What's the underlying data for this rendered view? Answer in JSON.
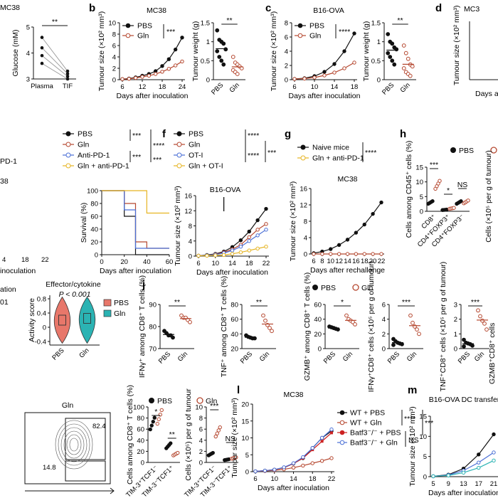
{
  "figure": {
    "fragments": {
      "title_top_left": "MC38",
      "title_top_right": "MC3",
      "left_e_1": "PD-1",
      "left_e_2": "38",
      "left_e_3": "inoculation",
      "left_e_ticks": [
        "4",
        "18",
        "22"
      ],
      "left_i_1": "ation",
      "left_i_2": "01",
      "right_j_partial": "GZMB⁺CD8⁺ cells",
      "right_d_1": "Tumour size (×10² mm³)",
      "right_d_2": "Days a"
    },
    "colors": {
      "pbs": "#111111",
      "gln": "#b5472f",
      "blue": "#4a6fd6",
      "yellow": "#e6b422",
      "purple": "#7d4bb0",
      "red": "#cc2222",
      "teal": "#2bb3b3",
      "salmon": "#e8776a"
    }
  },
  "panels": [
    {
      "id": "a",
      "chart_data": {
        "type": "scatter",
        "ylabel": "Glucose (mM)",
        "categories": [
          "Plasma",
          "TIF"
        ],
        "series": [
          {
            "name": "",
            "values": [
              [
                4.6,
                3.3
              ],
              [
                4.2,
                3.2
              ],
              [
                3.9,
                3.1
              ],
              [
                3.6,
                3.0
              ]
            ]
          }
        ],
        "ylim": [
          3,
          5
        ],
        "significance": "**"
      }
    },
    {
      "id": "b",
      "title": "MC38",
      "chart_data": {
        "type": "line",
        "xlabel": "Days after inoculation",
        "ylabel": "Tumour size (×10² mm³)",
        "x": [
          6,
          8,
          10,
          12,
          14,
          16,
          18,
          20,
          22,
          24
        ],
        "xticks": [
          6,
          12,
          18,
          24
        ],
        "yticks": [
          0,
          2,
          4,
          6,
          8,
          10
        ],
        "ylim": [
          0,
          10
        ],
        "series": [
          {
            "name": "PBS",
            "values": [
              0.1,
              0.2,
              0.4,
              0.7,
              1.0,
              1.5,
              2.4,
              3.6,
              5.3,
              7.4
            ]
          },
          {
            "name": "Gln",
            "values": [
              0.1,
              0.15,
              0.3,
              0.5,
              0.7,
              1.0,
              1.4,
              1.9,
              2.5,
              3.2
            ]
          }
        ],
        "significance": "***"
      }
    },
    {
      "id": "b2",
      "chart_data": {
        "type": "scatter",
        "ylabel": "Tumour weight (g)",
        "categories": [
          "PBS",
          "Gln"
        ],
        "yticks": [
          0.0,
          0.5,
          1.0,
          1.5
        ],
        "ylim": [
          0,
          1.5
        ],
        "series": [
          {
            "name": "PBS",
            "values": [
              1.3,
              1.05,
              1.0,
              0.95,
              0.8,
              0.75,
              0.6,
              0.5,
              0.4
            ]
          },
          {
            "name": "Gln",
            "values": [
              0.6,
              0.45,
              0.4,
              0.35,
              0.3,
              0.25,
              0.2,
              0.15
            ]
          }
        ],
        "significance": "**"
      }
    },
    {
      "id": "c",
      "title": "B16-OVA",
      "chart_data": {
        "type": "line",
        "xlabel": "Days after inoculation",
        "ylabel": "Tumour size (×10² mm³)",
        "x": [
          6,
          8,
          10,
          12,
          14,
          16,
          18
        ],
        "xticks": [
          6,
          10,
          14,
          18
        ],
        "yticks": [
          0,
          2,
          4,
          6,
          8
        ],
        "ylim": [
          0,
          8
        ],
        "series": [
          {
            "name": "PBS",
            "values": [
              0.1,
              0.2,
              0.5,
              1.1,
              2.2,
              4.0,
              6.5
            ]
          },
          {
            "name": "Gln",
            "values": [
              0.1,
              0.15,
              0.3,
              0.6,
              1.0,
              1.6,
              2.4
            ]
          }
        ],
        "significance": "****"
      }
    },
    {
      "id": "c2",
      "chart_data": {
        "type": "scatter",
        "ylabel": "Tumour weight (g)",
        "categories": [
          "PBS",
          "Gln"
        ],
        "yticks": [
          0,
          0.5,
          1.0,
          1.5
        ],
        "ylim": [
          0,
          1.5
        ],
        "series": [
          {
            "name": "PBS",
            "values": [
              1.2,
              1.0,
              0.95,
              0.85,
              0.8,
              0.7,
              0.6,
              0.5,
              0.4
            ]
          },
          {
            "name": "Gln",
            "values": [
              0.9,
              0.7,
              0.55,
              0.4,
              0.35,
              0.3,
              0.2,
              0.15,
              0.1
            ]
          }
        ],
        "significance": "**"
      }
    },
    {
      "id": "e2",
      "chart_data": {
        "type": "line",
        "xlabel": "Days after inoculation",
        "ylabel": "Survival (%)",
        "x": [
          0,
          10,
          20,
          30,
          40,
          50,
          60
        ],
        "xticks": [
          0,
          20,
          40,
          60
        ],
        "yticks": [
          0,
          20,
          40,
          60,
          80,
          100
        ],
        "ylim": [
          0,
          100
        ],
        "series": [
          {
            "name": "PBS",
            "values": [
              100,
              100,
              60,
              0,
              0,
              0,
              0
            ]
          },
          {
            "name": "Gln",
            "values": [
              100,
              100,
              80,
              20,
              10,
              10,
              10
            ]
          },
          {
            "name": "Anti-PD-1",
            "values": [
              100,
              100,
              70,
              10,
              10,
              10,
              10
            ]
          },
          {
            "name": "Gln + anti-PD-1",
            "values": [
              100,
              100,
              100,
              100,
              65,
              65,
              65
            ]
          }
        ],
        "significance": [
          "***",
          "****",
          "***",
          "***"
        ]
      }
    },
    {
      "id": "f",
      "title": "B16-OVA",
      "chart_data": {
        "type": "line",
        "xlabel": "Days after inoculation",
        "ylabel": "Tumour size (×10² mm³)",
        "x": [
          6,
          8,
          10,
          12,
          14,
          16,
          18,
          20,
          22
        ],
        "xticks": [
          6,
          10,
          14,
          18,
          22
        ],
        "yticks": [
          0,
          4,
          8,
          12,
          16
        ],
        "ylim": [
          0,
          16
        ],
        "series": [
          {
            "name": "PBS",
            "values": [
              0.1,
              0.3,
              0.6,
              1.2,
              2.4,
              4.2,
              6.5,
              9.5,
              12.5
            ]
          },
          {
            "name": "Gln",
            "values": [
              0.1,
              0.2,
              0.5,
              1.0,
              1.8,
              3.0,
              5.0,
              7.0,
              8.5
            ]
          },
          {
            "name": "OT-I",
            "values": [
              0.1,
              0.2,
              0.4,
              0.8,
              1.5,
              2.5,
              4.0,
              5.5,
              7.0
            ]
          },
          {
            "name": "Gln + OT-I",
            "values": [
              0.1,
              0.1,
              0.2,
              0.3,
              0.6,
              1.0,
              1.5,
              2.0,
              2.5
            ]
          }
        ],
        "significance": [
          "****",
          "****",
          "***"
        ]
      }
    },
    {
      "id": "g",
      "title": "MC38",
      "chart_data": {
        "type": "line",
        "xlabel": "Days after rechallenge",
        "ylabel": "Tumour size (×10² mm³)",
        "x": [
          6,
          8,
          10,
          12,
          14,
          16,
          18,
          20,
          22
        ],
        "xticks": [
          6,
          8,
          10,
          12,
          14,
          16,
          18,
          20,
          22
        ],
        "yticks": [
          0,
          4,
          8,
          12,
          16
        ],
        "ylim": [
          0,
          16
        ],
        "series": [
          {
            "name": "Naive mice",
            "values": [
              0.2,
              0.6,
              1.2,
              2.2,
              3.5,
              5.2,
              7.2,
              9.8,
              12.6
            ]
          },
          {
            "name": "Gln + anti-PD-1",
            "values": [
              0,
              0,
              0,
              0,
              0,
              0,
              0,
              0,
              0
            ]
          }
        ],
        "significance": "****"
      }
    },
    {
      "id": "h",
      "chart_data": {
        "type": "scatter",
        "ylabel": "Cells among CD45⁺ cells (%)",
        "categories": [
          "CD8⁺",
          "CD4⁺FOXP3⁺",
          "CD4⁺FOXP3⁻"
        ],
        "yticks": [
          0,
          5,
          10,
          15
        ],
        "ylim": [
          0,
          15
        ],
        "series": [
          {
            "name": "PBS",
            "values": [
              3.0,
              0.5,
              3.0
            ]
          },
          {
            "name": "Gln",
            "values": [
              9.0,
              1.0,
              3.2
            ]
          }
        ],
        "significance": [
          "***",
          "*",
          "NS"
        ],
        "ylabel2": "Cells (×10⁵ per g of tumour)"
      }
    },
    {
      "id": "i2",
      "title": "Effector/cytokine",
      "chart_data": {
        "type": "violin",
        "ylabel": "Activity score",
        "categories": [
          "PBS",
          "Gln"
        ],
        "yticks": [
          -0.4,
          0,
          0.4,
          0.8
        ],
        "ylim": [
          -0.5,
          0.9
        ],
        "series": [
          {
            "name": "PBS",
            "values": [
              0.2
            ]
          },
          {
            "name": "Gln",
            "values": [
              0.25
            ]
          }
        ],
        "significance": "P < 0.001"
      }
    },
    {
      "id": "j1",
      "chart_data": {
        "type": "scatter",
        "ylabel": "IFNγ⁺ among CD8⁺ T cells (%)",
        "categories": [
          "PBS",
          "Gln"
        ],
        "yticks": [
          70,
          80,
          90
        ],
        "ylim": [
          70,
          90
        ],
        "series": [
          {
            "name": "PBS",
            "values": [
              78,
              77,
              76,
              76,
              75
            ]
          },
          {
            "name": "Gln",
            "values": [
              85,
              84,
              84,
              83,
              82
            ]
          }
        ],
        "significance": "**"
      }
    },
    {
      "id": "j2",
      "chart_data": {
        "type": "scatter",
        "ylabel": "TNF⁺ among CD8⁺ T cells (%)",
        "categories": [
          "PBS",
          "Gln"
        ],
        "yticks": [
          20,
          40,
          60,
          80
        ],
        "ylim": [
          20,
          80
        ],
        "series": [
          {
            "name": "PBS",
            "values": [
              38,
              36,
              35,
              34,
              34
            ]
          },
          {
            "name": "Gln",
            "values": [
              65,
              58,
              52,
              48,
              44
            ]
          }
        ],
        "significance": "**"
      }
    },
    {
      "id": "j3",
      "chart_data": {
        "type": "scatter",
        "ylabel": "GZMB⁺ among CD8⁺ T cells (%)",
        "categories": [
          "PBS",
          "Gln"
        ],
        "yticks": [
          0,
          20,
          40,
          60
        ],
        "ylim": [
          0,
          60
        ],
        "series": [
          {
            "name": "PBS",
            "values": [
              30,
              29,
              28,
              27,
              26
            ]
          },
          {
            "name": "Gln",
            "values": [
              45,
              40,
              38,
              36,
              33
            ]
          }
        ],
        "significance": "*"
      }
    },
    {
      "id": "j4",
      "chart_data": {
        "type": "scatter",
        "ylabel": "IFNγ⁺CD8⁺ cells (×10⁵ per g of tumour)",
        "categories": [
          "PBS",
          "Gln"
        ],
        "yticks": [
          0,
          2,
          4,
          6
        ],
        "ylim": [
          0,
          6
        ],
        "series": [
          {
            "name": "PBS",
            "values": [
              1.3,
              1.0,
              0.8,
              0.7,
              0.6,
              0.5
            ]
          },
          {
            "name": "Gln",
            "values": [
              4.5,
              3.5,
              3.0,
              2.6,
              2.0
            ]
          }
        ],
        "significance": "***"
      }
    },
    {
      "id": "j5",
      "chart_data": {
        "type": "scatter",
        "ylabel": "TNF⁺CD8⁺ cells (×10⁵ per g of tumour)",
        "categories": [
          "PBS",
          "Gln"
        ],
        "yticks": [
          0,
          1,
          2,
          3
        ],
        "ylim": [
          0,
          3
        ],
        "series": [
          {
            "name": "PBS",
            "values": [
              0.6,
              0.4,
              0.35,
              0.3,
              0.2,
              0.15
            ]
          },
          {
            "name": "Gln",
            "values": [
              2.6,
              2.2,
              1.9,
              1.7,
              1.3
            ]
          }
        ],
        "significance": "***"
      }
    },
    {
      "id": "k1",
      "chart_data": {
        "type": "flow",
        "title": "Gln",
        "gate_values": [
          "82.4",
          "14.8"
        ]
      }
    },
    {
      "id": "k2",
      "chart_data": {
        "type": "scatter",
        "ylabel": "Cells among CD8⁺ T cells (%)",
        "categories": [
          "TIM-3⁺TCF1⁻",
          "TIM-3⁻TCF1⁺"
        ],
        "yticks": [
          0,
          20,
          40,
          60,
          80,
          100
        ],
        "ylim": [
          0,
          100
        ],
        "series": [
          {
            "name": "PBS",
            "values": [
              70,
              30
            ]
          },
          {
            "name": "Gln",
            "values": [
              82,
              15
            ]
          }
        ],
        "significance": [
          "*",
          "**"
        ]
      }
    },
    {
      "id": "k3",
      "chart_data": {
        "type": "scatter",
        "ylabel": "Cells (×10⁵) per g of tumour",
        "categories": [
          "TIM-3⁺TCF1⁻",
          "TIM-3⁻TCF1⁺"
        ],
        "yticks": [
          0,
          2,
          4,
          6,
          8,
          10
        ],
        "ylim": [
          0,
          10
        ],
        "series": [
          {
            "name": "PBS",
            "values": [
              1.5,
              0.5
            ]
          },
          {
            "name": "Gln",
            "values": [
              5.5,
              0.8
            ]
          }
        ],
        "significance": [
          "***",
          "NS"
        ]
      }
    },
    {
      "id": "l",
      "title": "MC38",
      "chart_data": {
        "type": "line",
        "xlabel": "Days after inoculation",
        "ylabel": "Tumour size (×10² mm³)",
        "x": [
          6,
          8,
          10,
          12,
          14,
          16,
          18,
          20,
          22
        ],
        "xticks": [
          6,
          10,
          14,
          18,
          22
        ],
        "yticks": [
          0,
          5,
          10,
          15,
          20
        ],
        "ylim": [
          0,
          20
        ],
        "series": [
          {
            "name": "WT + PBS",
            "values": [
              0.1,
              0.3,
              0.6,
              1.2,
              2.4,
              4.0,
              7.0,
              10.0,
              12.0
            ]
          },
          {
            "name": "WT + Gln",
            "values": [
              0.1,
              0.2,
              0.4,
              0.7,
              1.2,
              1.8,
              2.5,
              3.2,
              4.0
            ]
          },
          {
            "name": "Batf3⁻/⁻ + PBS",
            "values": [
              0.1,
              0.3,
              0.6,
              1.2,
              2.4,
              4.0,
              6.5,
              9.0,
              11.5
            ]
          },
          {
            "name": "Batf3⁻/⁻ + Gln",
            "values": [
              0.1,
              0.3,
              0.6,
              1.3,
              2.5,
              4.3,
              7.0,
              10.0,
              12.5
            ]
          }
        ],
        "significance": [
          "****",
          "***",
          "NS"
        ]
      }
    },
    {
      "id": "m",
      "title": "B16-OVA DC transfer",
      "chart_data": {
        "type": "line",
        "xlabel": "Days after inoculation",
        "ylabel": "Tumour size (×10² mm³)",
        "x": [
          5,
          9,
          13,
          17,
          21
        ],
        "xticks": [
          5,
          9,
          13,
          17,
          21
        ],
        "yticks": [
          0,
          5,
          10,
          15
        ],
        "ylim": [
          0,
          15
        ],
        "series": [
          {
            "name": "",
            "values": [
              0.1,
              0.5,
              2.0,
              5.5,
              10.5
            ]
          },
          {
            "name": "",
            "values": [
              0.1,
              0.4,
              1.5,
              3.5,
              6.0
            ]
          },
          {
            "name": "",
            "values": [
              0.1,
              0.3,
              1.0,
              2.2,
              4.0
            ]
          }
        ]
      }
    }
  ]
}
